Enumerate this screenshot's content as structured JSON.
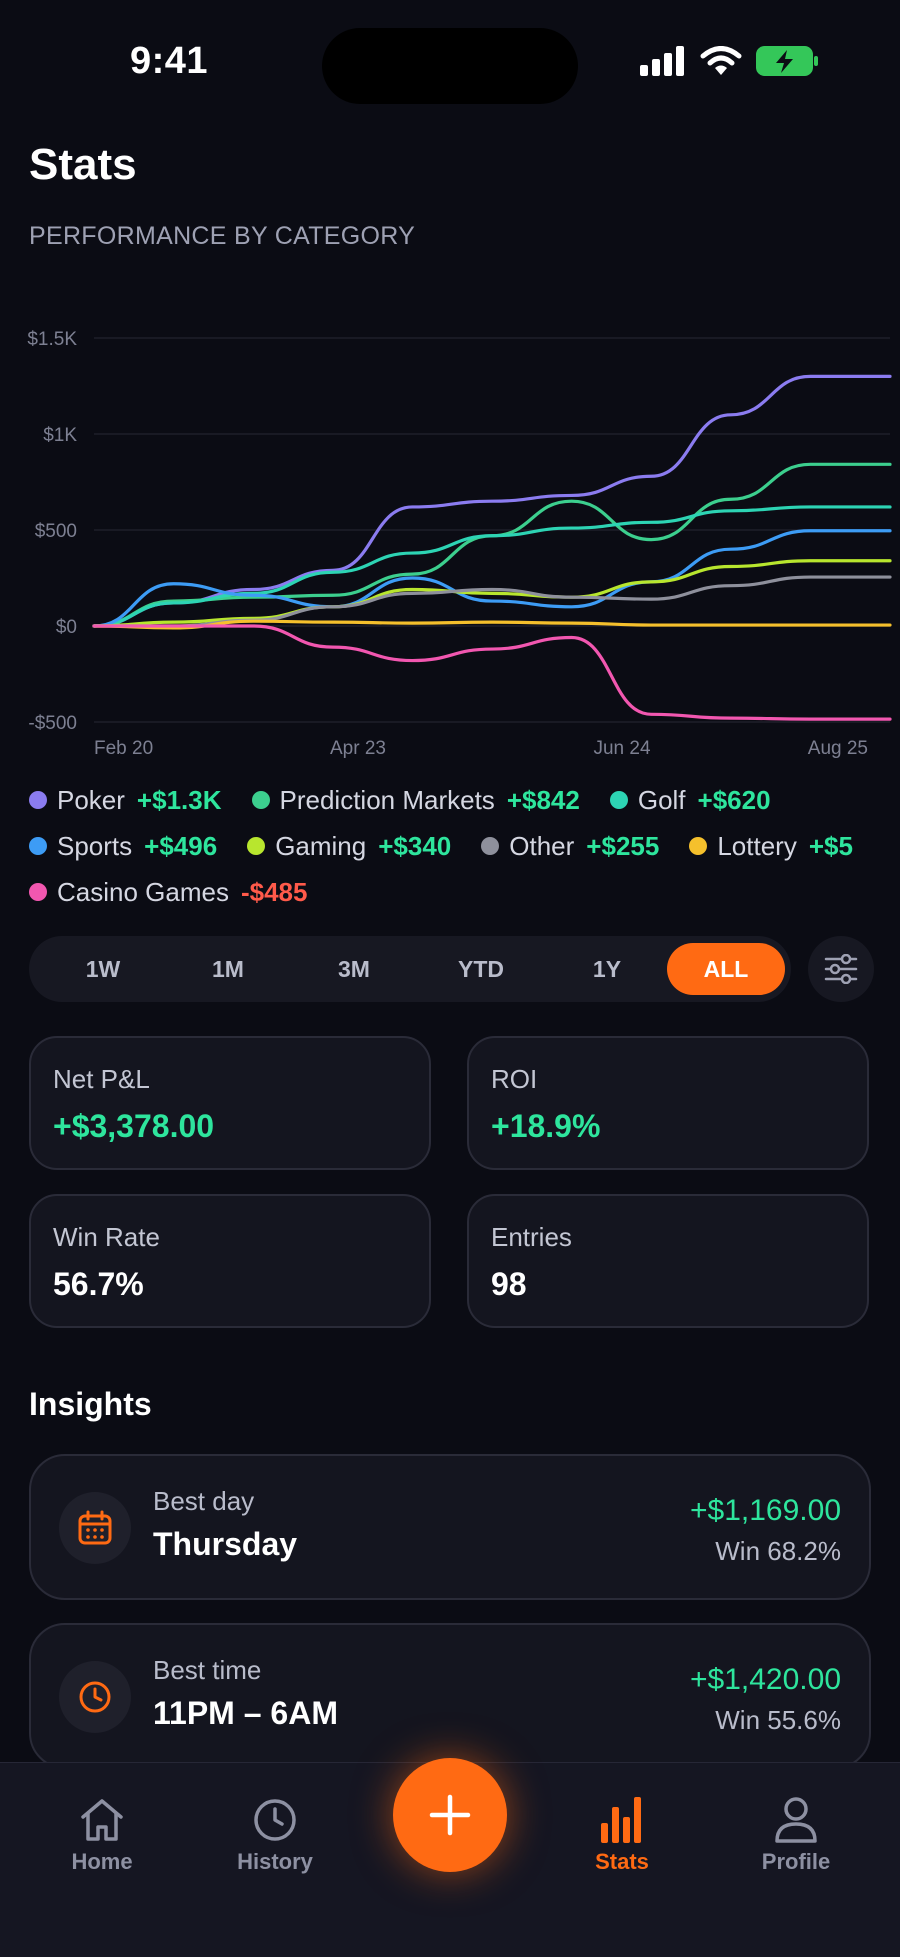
{
  "status": {
    "time": "9:41"
  },
  "header": {
    "title": "Stats",
    "subtitle": "PERFORMANCE BY CATEGORY"
  },
  "chart_data": {
    "type": "line",
    "title": "PERFORMANCE BY CATEGORY",
    "ylabel": "",
    "xlabel": "",
    "yticks": [
      "$1.5K",
      "$1K",
      "$500",
      "$0",
      "-$500"
    ],
    "ytick_values": [
      1500,
      1000,
      500,
      0,
      -500
    ],
    "xticks": [
      "Feb 20",
      "Apr 23",
      "Jun 24",
      "Aug 25"
    ],
    "ylim": [
      -500,
      1500
    ],
    "grid": true,
    "legend_position": "bottom",
    "series": [
      {
        "name": "Poker",
        "color": "#8b7cf0",
        "values": [
          0,
          120,
          190,
          290,
          620,
          650,
          680,
          780,
          1100,
          1300,
          1300
        ]
      },
      {
        "name": "Prediction Markets",
        "color": "#3ccf8e",
        "values": [
          0,
          130,
          150,
          160,
          270,
          470,
          650,
          450,
          660,
          842,
          842
        ]
      },
      {
        "name": "Golf",
        "color": "#2dd4b4",
        "values": [
          0,
          120,
          170,
          280,
          380,
          470,
          510,
          540,
          600,
          620,
          620
        ]
      },
      {
        "name": "Sports",
        "color": "#3d9cf5",
        "values": [
          0,
          220,
          160,
          100,
          250,
          130,
          100,
          230,
          400,
          496,
          496
        ]
      },
      {
        "name": "Gaming",
        "color": "#b8e62e",
        "values": [
          0,
          20,
          40,
          100,
          190,
          170,
          150,
          230,
          310,
          340,
          340
        ]
      },
      {
        "name": "Other",
        "color": "#8e909c",
        "values": [
          0,
          0,
          30,
          100,
          170,
          190,
          150,
          140,
          210,
          255,
          255
        ]
      },
      {
        "name": "Lottery",
        "color": "#f5c02c",
        "values": [
          0,
          -10,
          25,
          20,
          15,
          20,
          15,
          5,
          5,
          5,
          5
        ]
      },
      {
        "name": "Casino Games",
        "color": "#f257b0",
        "values": [
          0,
          0,
          0,
          -110,
          -180,
          -120,
          -60,
          -460,
          -480,
          -485,
          -485
        ]
      }
    ]
  },
  "legend": [
    {
      "name": "Poker",
      "value": "+$1.3K",
      "color": "#8b7cf0",
      "value_color": "#2ee59d"
    },
    {
      "name": "Prediction Markets",
      "value": "+$842",
      "color": "#3ccf8e",
      "value_color": "#2ee59d"
    },
    {
      "name": "Golf",
      "value": "+$620",
      "color": "#2dd4b4",
      "value_color": "#2ee59d"
    },
    {
      "name": "Sports",
      "value": "+$496",
      "color": "#3d9cf5",
      "value_color": "#2ee59d"
    },
    {
      "name": "Gaming",
      "value": "+$340",
      "color": "#b8e62e",
      "value_color": "#2ee59d"
    },
    {
      "name": "Other",
      "value": "+$255",
      "color": "#8e909c",
      "value_color": "#2ee59d"
    },
    {
      "name": "Lottery",
      "value": "+$5",
      "color": "#f5c02c",
      "value_color": "#2ee59d"
    },
    {
      "name": "Casino Games",
      "value": "-$485",
      "color": "#f257b0",
      "value_color": "#ff5a4a"
    }
  ],
  "ranges": [
    "1W",
    "1M",
    "3M",
    "YTD",
    "1Y",
    "ALL"
  ],
  "active_range": "ALL",
  "metrics": [
    {
      "label": "Net P&L",
      "value": "+$3,378.00",
      "color": "#2ee59d"
    },
    {
      "label": "ROI",
      "value": "+18.9%",
      "color": "#2ee59d"
    },
    {
      "label": "Win Rate",
      "value": "56.7%",
      "color": "#ffffff"
    },
    {
      "label": "Entries",
      "value": "98",
      "color": "#ffffff"
    }
  ],
  "insights": {
    "title": "Insights",
    "items": [
      {
        "icon": "calendar-icon",
        "label": "Best day",
        "value": "Thursday",
        "amount": "+$1,169.00",
        "win": "Win 68.2%"
      },
      {
        "icon": "clock-icon",
        "label": "Best time",
        "value": "11PM – 6AM",
        "amount": "+$1,420.00",
        "win": "Win 55.6%"
      }
    ]
  },
  "tabbar": {
    "home": "Home",
    "history": "History",
    "stats": "Stats",
    "profile": "Profile",
    "active": "Stats"
  },
  "colors": {
    "accent": "#ff6a13",
    "positive": "#2ee59d",
    "negative": "#ff5a4a",
    "background": "#0b0c14"
  }
}
